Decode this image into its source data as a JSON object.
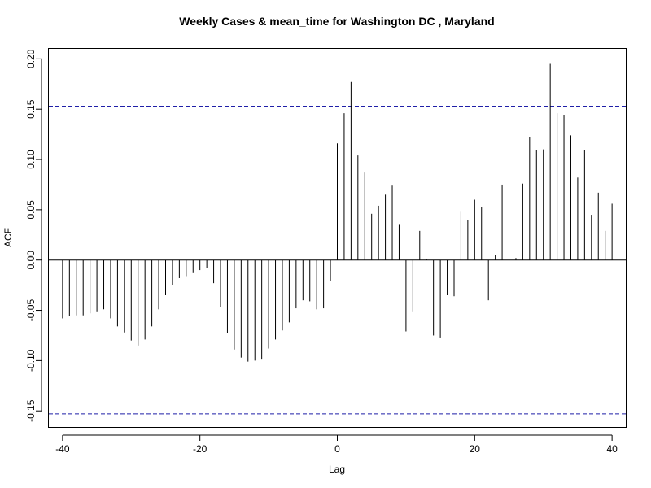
{
  "chart_data": {
    "type": "bar",
    "title": "Weekly Cases & mean_time for Washington DC , Maryland",
    "xlabel": "Lag",
    "ylabel": "ACF",
    "xlim": [
      -42,
      42
    ],
    "ylim": [
      -0.166,
      0.21
    ],
    "x_ticks": [
      {
        "value": -40,
        "label": "-40"
      },
      {
        "value": -20,
        "label": "-20"
      },
      {
        "value": 0,
        "label": "0"
      },
      {
        "value": 20,
        "label": "20"
      },
      {
        "value": 40,
        "label": "40"
      }
    ],
    "y_ticks": [
      {
        "value": -0.15,
        "label": "-0.15"
      },
      {
        "value": -0.1,
        "label": "-0.10"
      },
      {
        "value": -0.05,
        "label": "-0.05"
      },
      {
        "value": 0.0,
        "label": "0.00"
      },
      {
        "value": 0.05,
        "label": "0.05"
      },
      {
        "value": 0.1,
        "label": "0.10"
      },
      {
        "value": 0.15,
        "label": "0.15"
      },
      {
        "value": 0.2,
        "label": "0.20"
      }
    ],
    "confidence_bounds": [
      0.153,
      -0.153
    ],
    "grid": false,
    "lags": [
      -40,
      -39,
      -38,
      -37,
      -36,
      -35,
      -34,
      -33,
      -32,
      -31,
      -30,
      -29,
      -28,
      -27,
      -26,
      -25,
      -24,
      -23,
      -22,
      -21,
      -20,
      -19,
      -18,
      -17,
      -16,
      -15,
      -14,
      -13,
      -12,
      -11,
      -10,
      -9,
      -8,
      -7,
      -6,
      -5,
      -4,
      -3,
      -2,
      -1,
      0,
      1,
      2,
      3,
      4,
      5,
      6,
      7,
      8,
      9,
      10,
      11,
      12,
      13,
      14,
      15,
      16,
      17,
      18,
      19,
      20,
      21,
      22,
      23,
      24,
      25,
      26,
      27,
      28,
      29,
      30,
      31,
      32,
      33,
      34,
      35,
      36,
      37,
      38,
      39,
      40
    ],
    "values": [
      -0.058,
      -0.056,
      -0.055,
      -0.055,
      -0.053,
      -0.051,
      -0.049,
      -0.058,
      -0.066,
      -0.072,
      -0.08,
      -0.085,
      -0.079,
      -0.066,
      -0.049,
      -0.035,
      -0.025,
      -0.018,
      -0.016,
      -0.013,
      -0.01,
      -0.008,
      -0.023,
      -0.047,
      -0.073,
      -0.089,
      -0.097,
      -0.101,
      -0.1,
      -0.099,
      -0.088,
      -0.079,
      -0.07,
      -0.062,
      -0.048,
      -0.04,
      -0.041,
      -0.049,
      -0.048,
      -0.021,
      0.116,
      0.146,
      0.177,
      0.104,
      0.087,
      0.046,
      0.054,
      0.065,
      0.074,
      0.035,
      -0.071,
      -0.051,
      0.029,
      0.001,
      -0.075,
      -0.077,
      -0.035,
      -0.036,
      0.048,
      0.04,
      0.06,
      0.053,
      -0.04,
      0.005,
      0.075,
      0.036,
      0.002,
      0.076,
      0.122,
      0.109,
      0.11,
      0.195,
      0.146,
      0.144,
      0.124,
      0.082,
      0.109,
      0.045,
      0.067,
      0.029,
      0.056
    ]
  }
}
